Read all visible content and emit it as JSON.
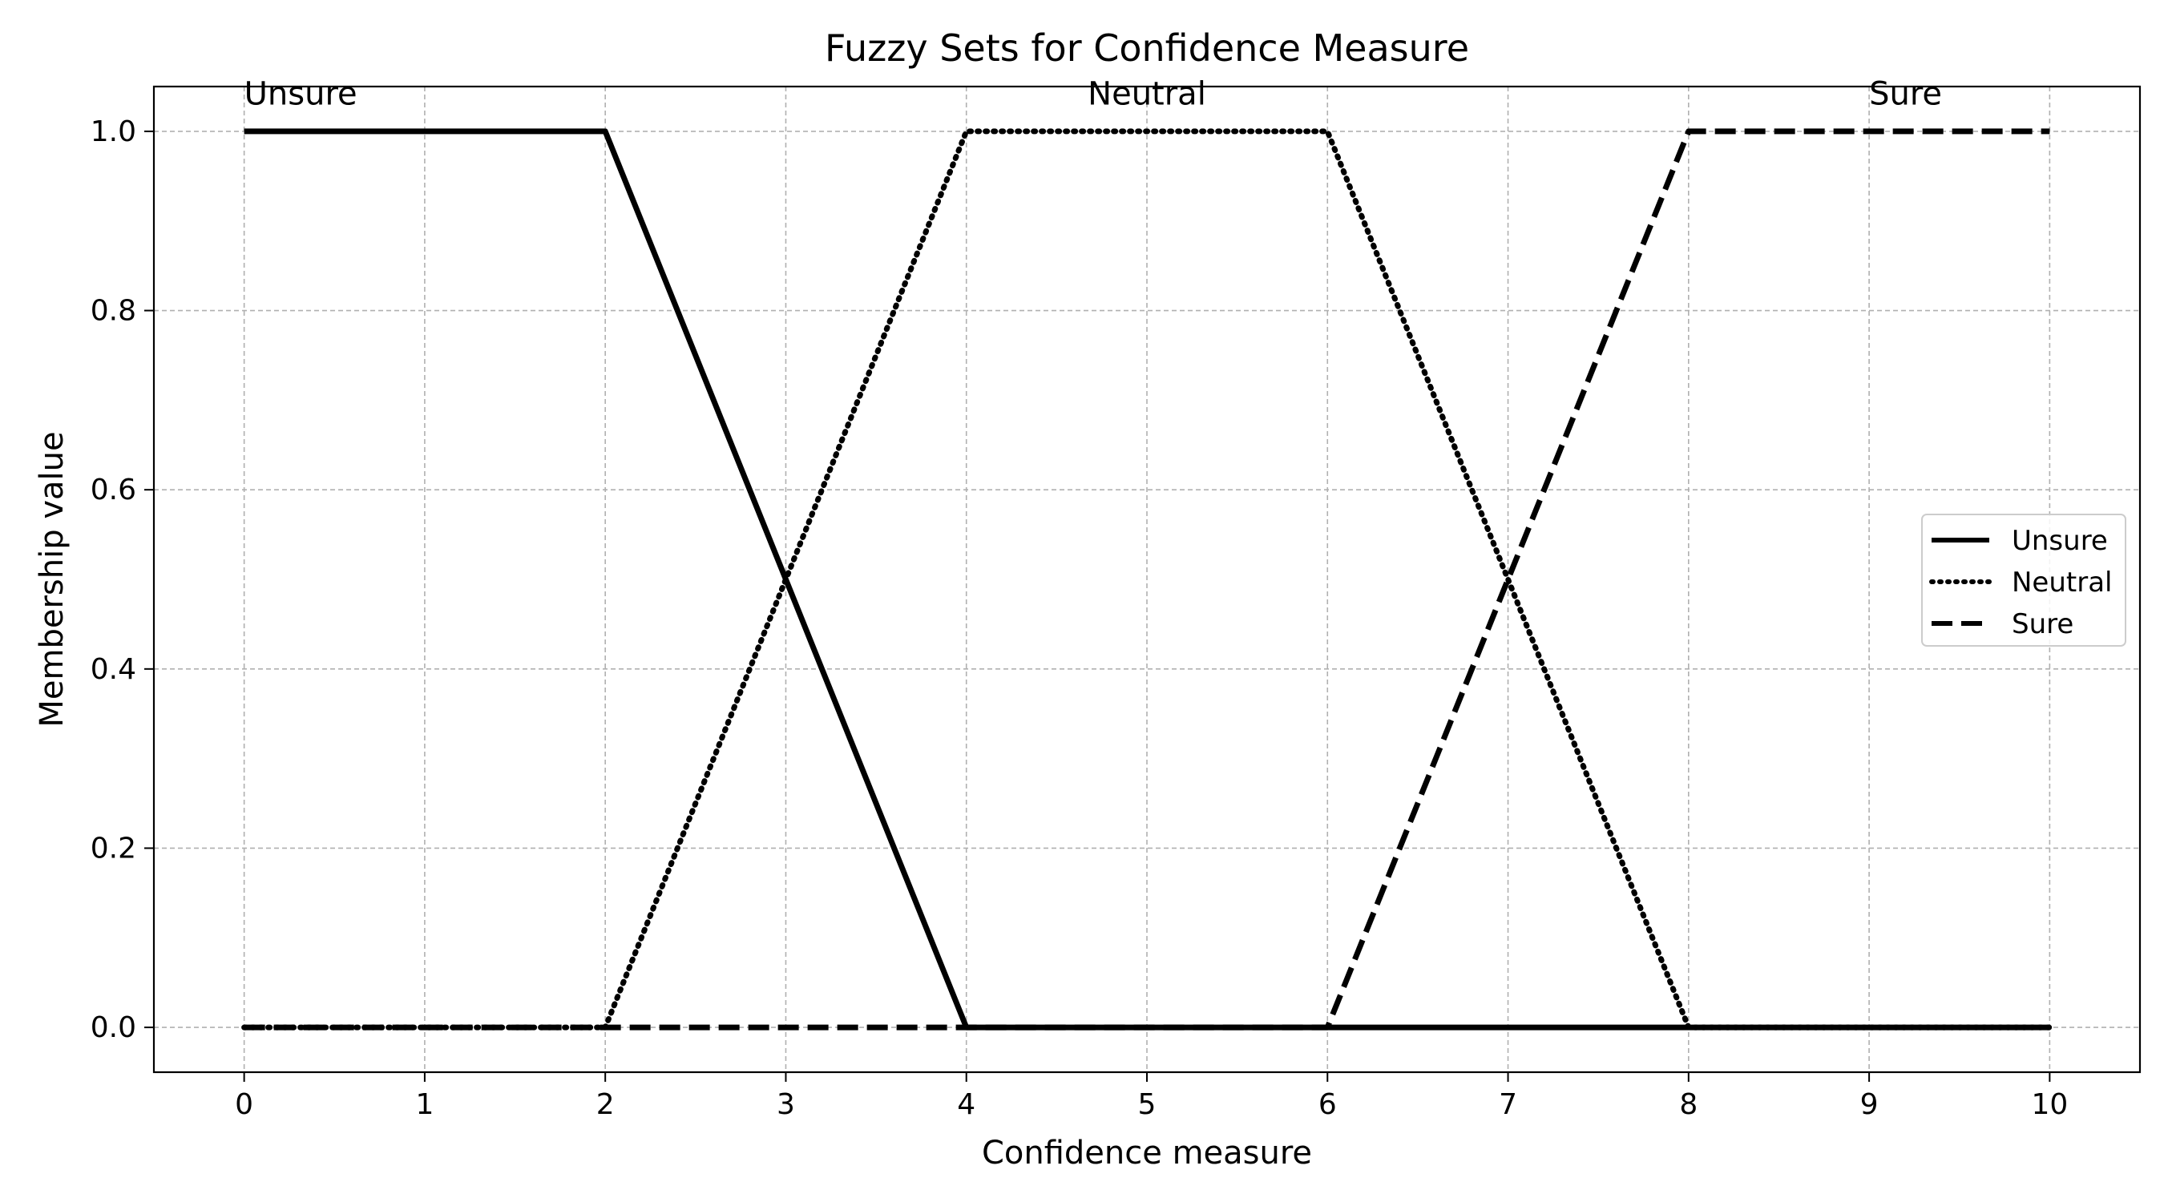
{
  "chart_data": {
    "type": "line",
    "title": "Fuzzy Sets for Confidence Measure",
    "xlabel": "Confidence measure",
    "ylabel": "Membership value",
    "xlim": [
      -0.5,
      10.5
    ],
    "ylim": [
      -0.05,
      1.05
    ],
    "xticks": [
      0,
      1,
      2,
      3,
      4,
      5,
      6,
      7,
      8,
      9,
      10
    ],
    "xtick_labels": [
      "0",
      "1",
      "2",
      "3",
      "4",
      "5",
      "6",
      "7",
      "8",
      "9",
      "10"
    ],
    "yticks": [
      0.0,
      0.2,
      0.4,
      0.6,
      0.8,
      1.0
    ],
    "ytick_labels": [
      "0.0",
      "0.2",
      "0.4",
      "0.6",
      "0.8",
      "1.0"
    ],
    "grid": true,
    "legend_position": "center-right",
    "series": [
      {
        "name": "Unsure",
        "line_style": "solid",
        "color": "#000000",
        "x": [
          0,
          2,
          4,
          10
        ],
        "y": [
          1,
          1,
          0,
          0
        ]
      },
      {
        "name": "Neutral",
        "line_style": "dotted",
        "color": "#000000",
        "x": [
          0,
          2,
          4,
          6,
          8,
          10
        ],
        "y": [
          0,
          0,
          1,
          1,
          0,
          0
        ]
      },
      {
        "name": "Sure",
        "line_style": "dashed",
        "color": "#000000",
        "x": [
          0,
          6,
          8,
          10
        ],
        "y": [
          0,
          0,
          1,
          1
        ]
      }
    ],
    "annotations": [
      {
        "text": "Unsure",
        "x": 0,
        "y": 1.03,
        "anchor": "start"
      },
      {
        "text": "Neutral",
        "x": 5,
        "y": 1.03,
        "anchor": "middle"
      },
      {
        "text": "Sure",
        "x": 9,
        "y": 1.03,
        "anchor": "start"
      }
    ]
  }
}
